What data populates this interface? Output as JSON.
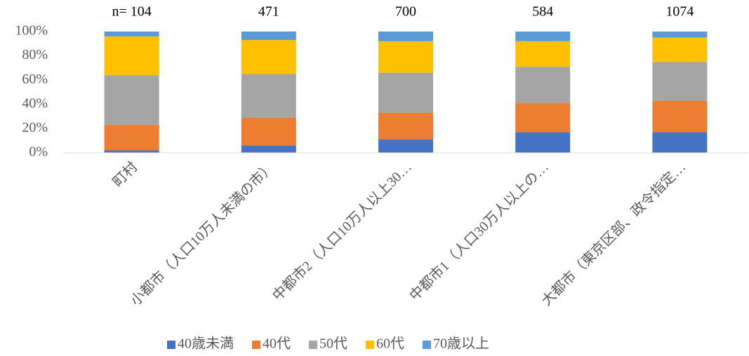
{
  "chart_data": {
    "type": "stacked_bar",
    "categories": [
      "町村",
      "小都市（人口10万人未満の市）",
      "中都市2（人口10万人以上30…",
      "中都市1（人口30万人以上の…",
      "大都市（東京区部、政令指定…"
    ],
    "annotations": [
      "n= 104",
      "471",
      "700",
      "584",
      "1074"
    ],
    "series": [
      {
        "name": "40歳未満",
        "color": "#4472c4",
        "values": [
          2,
          6,
          11,
          17,
          17
        ]
      },
      {
        "name": "40代",
        "color": "#ed7d31",
        "values": [
          21,
          23,
          22,
          24,
          26
        ]
      },
      {
        "name": "50代",
        "color": "#a5a5a5",
        "values": [
          41,
          36,
          33,
          30,
          32
        ]
      },
      {
        "name": "60代",
        "color": "#ffc000",
        "values": [
          32,
          28,
          26,
          21,
          20
        ]
      },
      {
        "name": "70歳以上",
        "color": "#5b9bd5",
        "values": [
          4,
          7,
          8,
          8,
          5
        ]
      }
    ],
    "ylim": [
      0,
      100
    ],
    "yticks": [
      {
        "value": 0,
        "label": "0%"
      },
      {
        "value": 20,
        "label": "20%"
      },
      {
        "value": 40,
        "label": "40%"
      },
      {
        "value": 60,
        "label": "60%"
      },
      {
        "value": 80,
        "label": "80%"
      },
      {
        "value": 100,
        "label": "100%"
      }
    ],
    "legend": "bottom"
  }
}
